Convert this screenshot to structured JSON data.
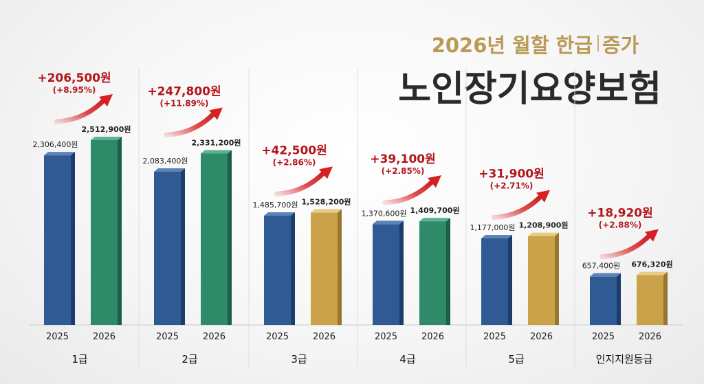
{
  "title": "노인장기요양보험",
  "subtitle": {
    "left": "2026년 월할 한급",
    "right": "증가"
  },
  "colors": {
    "year2025_front": "#2f5a93",
    "year2025_side": "#1c3c6c",
    "year2025_top": "#5b83b8",
    "year2026_green_front": "#2e8a68",
    "year2026_green_side": "#1c5e46",
    "year2026_green_top": "#5bb38f",
    "year2026_gold_front": "#c9a24a",
    "year2026_gold_side": "#987630",
    "year2026_gold_top": "#e8cc85",
    "delta_text": "#b3151b",
    "arrow": "#d62024"
  },
  "chart_data": {
    "type": "bar",
    "categories": [
      "1급",
      "2급",
      "3급",
      "4급",
      "5급",
      "인지지원등급"
    ],
    "x_tick_labels": [
      "2025",
      "2026"
    ],
    "series": [
      {
        "name": "2025",
        "values": [
          2306400,
          2083400,
          1485700,
          1370600,
          1177000,
          657400
        ],
        "labels": [
          "2,306,400원",
          "2,083,400원",
          "1,485,700원",
          "1,370,600원",
          "1,177,000원",
          "657,400원"
        ]
      },
      {
        "name": "2026",
        "values": [
          2512900,
          2331200,
          1528200,
          1409700,
          1208900,
          676320
        ],
        "labels": [
          "2,512,900원",
          "2,331,200원",
          "1,528,200원",
          "1,409,700원",
          "1,208,900원",
          "676,320원"
        ]
      }
    ],
    "series_2026_colors": [
      "green",
      "green",
      "gold",
      "green",
      "gold",
      "gold"
    ],
    "increase_labels": [
      "+206,500원",
      "+247,800원",
      "+42,500원",
      "+39,100원",
      "+31,900원",
      "+18,920원"
    ],
    "increase_pct_labels": [
      "(+8.95%)",
      "(+11.89%)",
      "(+2.86%)",
      "(+2.85%)",
      "(+2.71%)",
      "(+2.88%)"
    ],
    "ylim": [
      0,
      2700000
    ],
    "grid": false
  }
}
